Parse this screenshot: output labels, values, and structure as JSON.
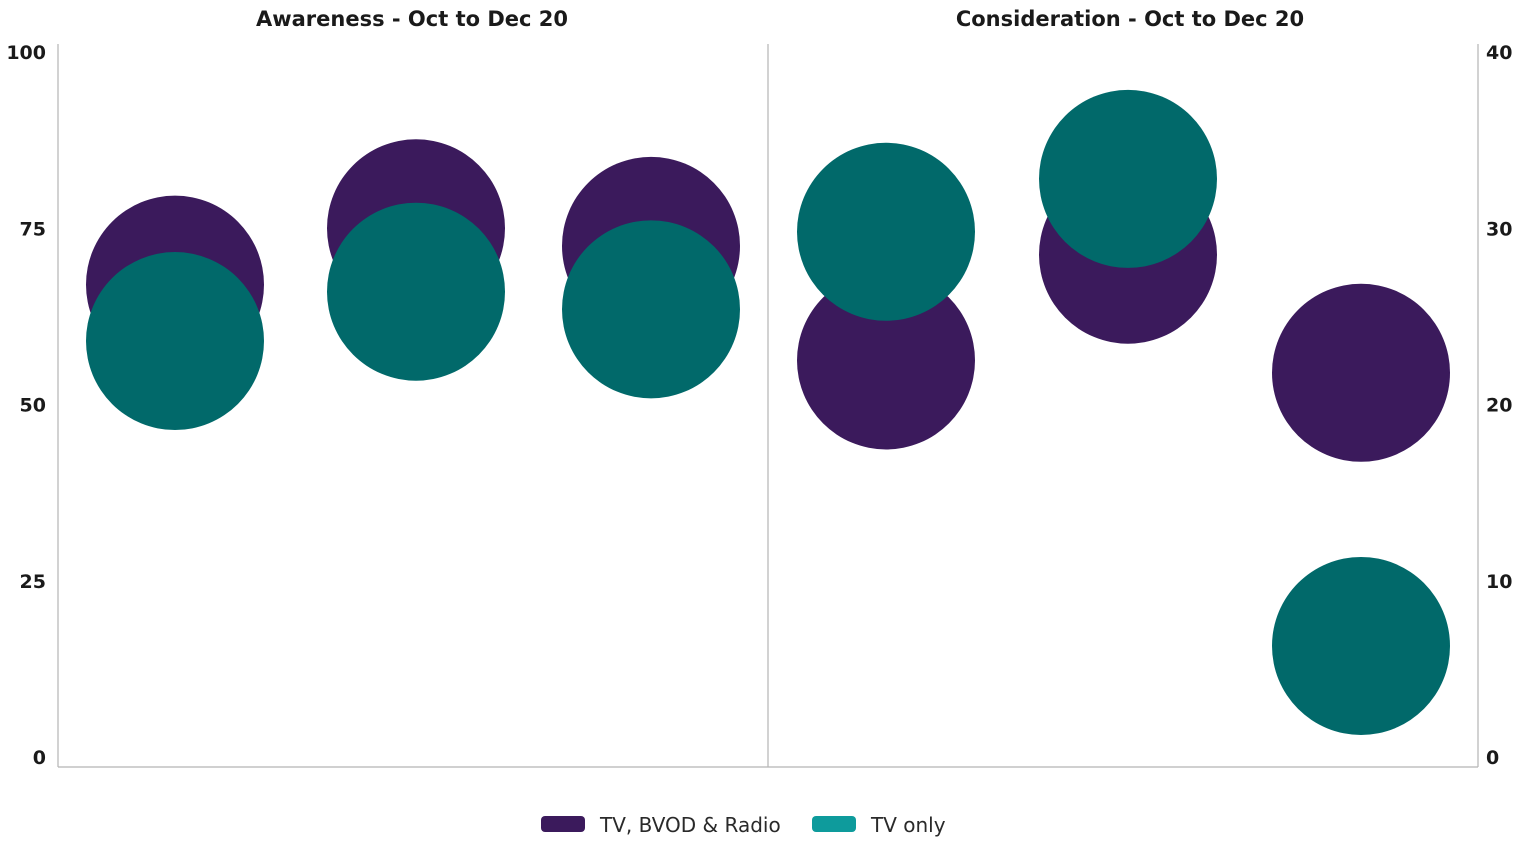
{
  "chart_data": [
    {
      "type": "scatter",
      "title": "Awareness - Oct to Dec 20",
      "xlabel": "",
      "ylabel": "",
      "ylim": [
        0,
        100
      ],
      "yticks": [
        0,
        25,
        50,
        75,
        100
      ],
      "axis_side": "left",
      "grid": false,
      "series": [
        {
          "name": "TV, BVOD & Radio",
          "values": [
            67,
            75,
            72.5
          ]
        },
        {
          "name": "TV only",
          "values": [
            59,
            66,
            63.5
          ]
        }
      ]
    },
    {
      "type": "scatter",
      "title": "Consideration - Oct to Dec 20",
      "xlabel": "",
      "ylabel": "",
      "ylim": [
        0,
        40
      ],
      "yticks": [
        0,
        10,
        20,
        30,
        40
      ],
      "axis_side": "right",
      "grid": false,
      "series": [
        {
          "name": "TV, BVOD & Radio",
          "values": [
            22.5,
            28.5,
            21.8
          ]
        },
        {
          "name": "TV only",
          "values": [
            29.8,
            32.8,
            6.3
          ]
        }
      ]
    }
  ],
  "legend": {
    "position": "bottom",
    "items": [
      {
        "label": "TV, BVOD & Radio",
        "color": "#3b1a5c"
      },
      {
        "label": "TV only",
        "color": "#01696a"
      }
    ]
  },
  "colors": {
    "series_1": "#3b1a5c",
    "series_2": "#01696a",
    "legend_series_2": "#0e9b9c",
    "axis": "#b5b5b5"
  }
}
